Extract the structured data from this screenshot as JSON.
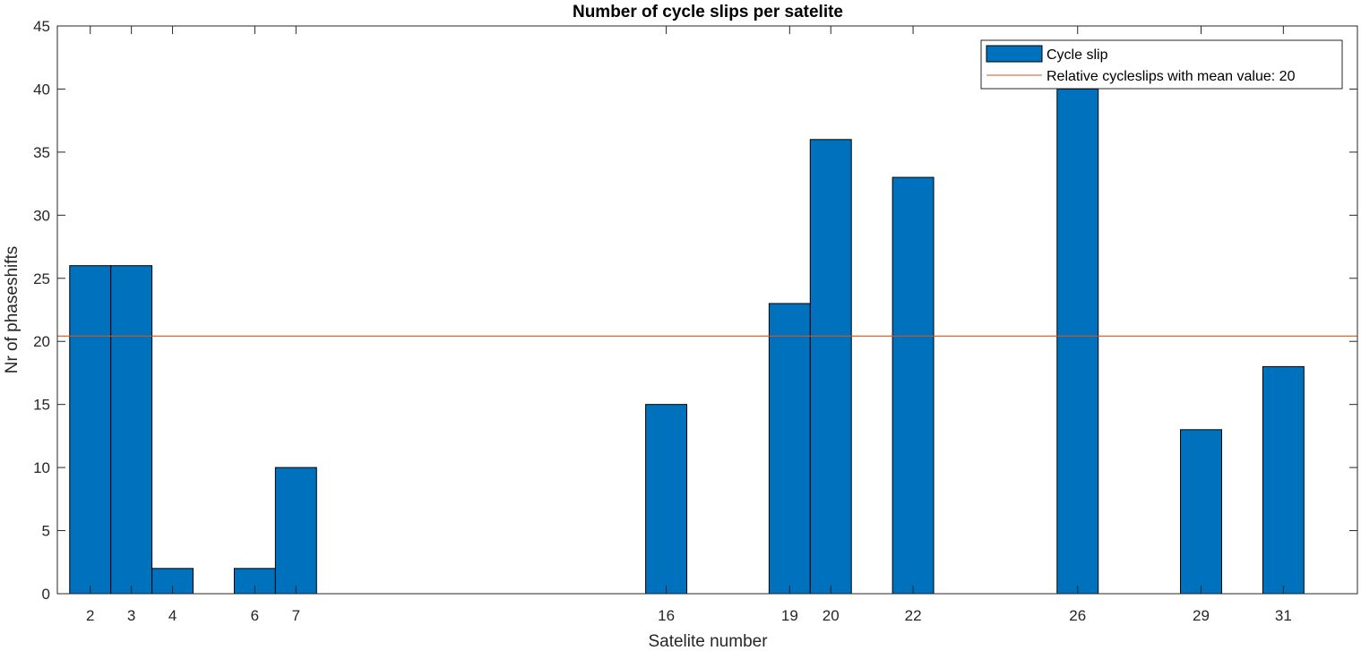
{
  "chart_data": {
    "type": "bar",
    "title": "Number of cycle slips per satelite",
    "xlabel": "Satelite number",
    "ylabel": "Nr of phaseshifts",
    "x": [
      2,
      3,
      4,
      6,
      7,
      16,
      19,
      20,
      22,
      26,
      29,
      31
    ],
    "xtick_labels": [
      "2",
      "3",
      "4",
      "6",
      "7",
      "16",
      "19",
      "20",
      "22",
      "26",
      "29",
      "31"
    ],
    "xlim": [
      1.2,
      32.8
    ],
    "ylim": [
      0,
      45
    ],
    "yticks": [
      0,
      5,
      10,
      15,
      20,
      25,
      30,
      35,
      40,
      45
    ],
    "series": [
      {
        "name": "Cycle slip",
        "type": "bar",
        "color": "#0072BD",
        "values": [
          26,
          26,
          2,
          2,
          10,
          15,
          23,
          36,
          33,
          40,
          13,
          18
        ]
      },
      {
        "name": "Relative cycleslips with mean value: 20",
        "type": "hline",
        "color": "#D95319",
        "value": 20.42
      }
    ],
    "legend_position": "top-right",
    "grid": false
  }
}
